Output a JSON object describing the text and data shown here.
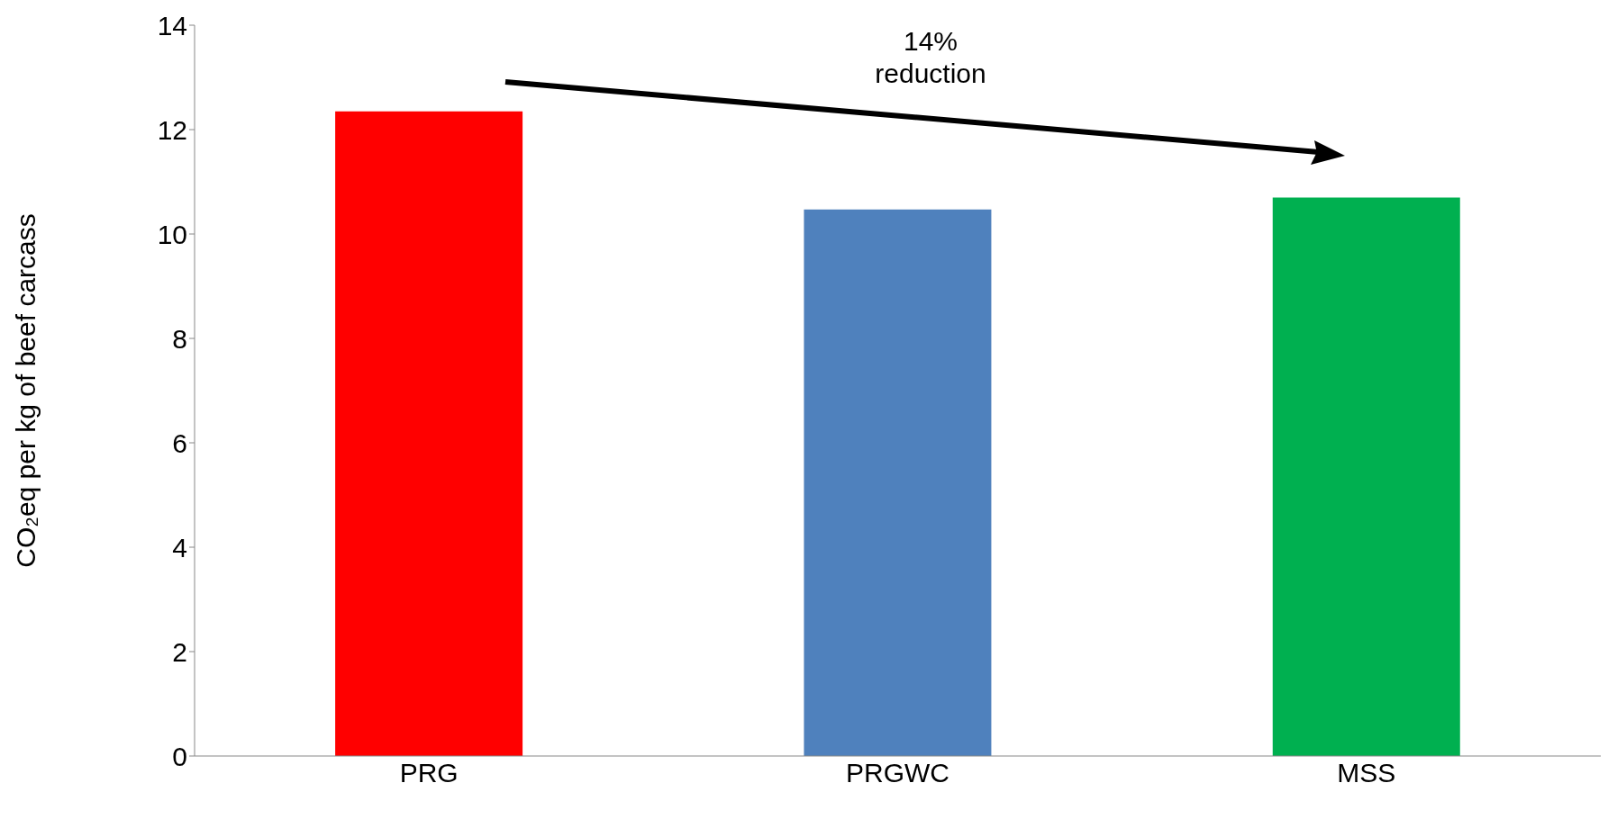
{
  "chart_data": {
    "type": "bar",
    "ylabel": "CO₂eq per kg of beef carcass",
    "categories": [
      "PRG",
      "PRGWC",
      "MSS"
    ],
    "values": [
      12.35,
      10.47,
      10.7
    ],
    "colors": [
      "#ff0000",
      "#4f81bd",
      "#00b050"
    ],
    "ylim": [
      0,
      14
    ],
    "yticks": [
      0,
      2,
      4,
      6,
      8,
      10,
      12,
      14
    ],
    "grid": false,
    "legend": false,
    "annotations": [
      "14% reduction"
    ]
  }
}
